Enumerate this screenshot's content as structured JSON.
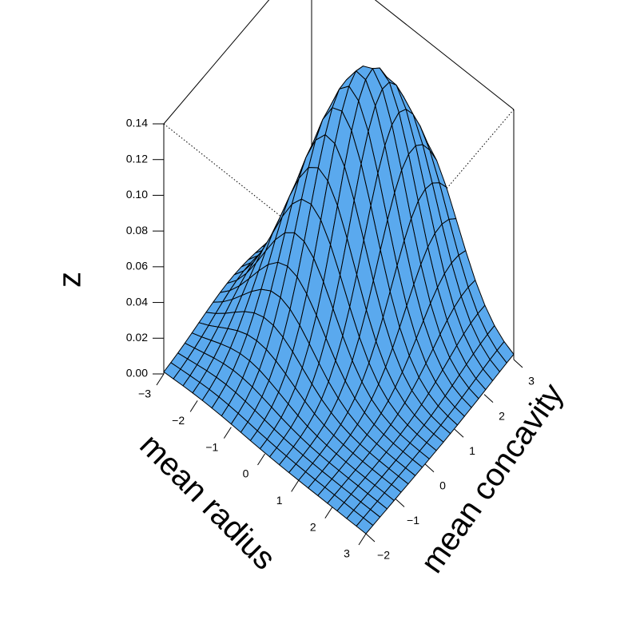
{
  "chart_data": {
    "type": "surface",
    "xlabel": "mean radius",
    "ylabel": "mean concavity",
    "zlabel": "z",
    "xlim": [
      -3,
      3
    ],
    "ylim": [
      -2,
      3
    ],
    "zlim": [
      0,
      0.14
    ],
    "x_ticks": [
      "−3",
      "−2",
      "−1",
      "0",
      "1",
      "2",
      "3"
    ],
    "y_ticks": [
      "−2",
      "−1",
      "0",
      "1",
      "2",
      "3"
    ],
    "z_ticks": [
      "0.00",
      "0.02",
      "0.04",
      "0.06",
      "0.08",
      "0.10",
      "0.12",
      "0.14"
    ],
    "surface_color": "#5aa9ee",
    "surface_peak": {
      "x": -0.25,
      "y": 1.7,
      "z": 0.14
    },
    "grid_size": 21
  }
}
